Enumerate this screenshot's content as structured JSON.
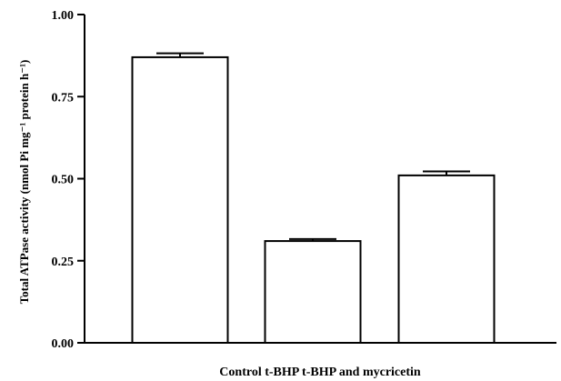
{
  "chart_data": {
    "type": "bar",
    "categories": [
      "Control",
      "t-BHP",
      "t-BHP and mycricetin"
    ],
    "category_axis_text": "Control t-BHP t-BHP and mycricetin",
    "values": [
      0.87,
      0.31,
      0.51
    ],
    "errors": [
      0.012,
      0.006,
      0.012
    ],
    "ylabel": "Total ATPase activity (nmol Pi mg⁻¹ protein h⁻¹)",
    "ylim": [
      0,
      1.0
    ],
    "yticks": [
      "0.00",
      "0.25",
      "0.50",
      "0.75",
      "1.00"
    ],
    "bar_fill": "#ffffff",
    "bar_stroke": "#000000",
    "grid": false
  }
}
